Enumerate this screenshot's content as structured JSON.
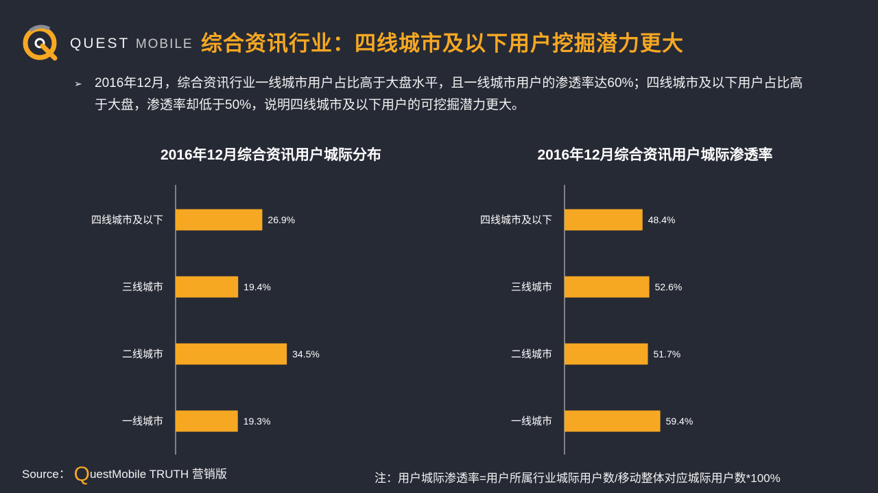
{
  "header": {
    "logo_brand": "QUEST",
    "logo_sub": "MOBILE",
    "title": "综合资讯行业：四线城市及以下用户挖掘潜力更大"
  },
  "bullet": {
    "marker": "➢",
    "text": "2016年12月，综合资讯行业一线城市用户占比高于大盘水平，且一线城市用户的渗透率达60%；四线城市及以下用户占比高于大盘，渗透率却低于50%，说明四线城市及以下用户的可挖掘潜力更大。"
  },
  "colors": {
    "bar": "#f7a823",
    "background": "#262a35",
    "title": "#f7a823"
  },
  "chart_data": [
    {
      "type": "bar",
      "orientation": "horizontal",
      "title": "2016年12月综合资讯用户城际分布",
      "categories": [
        "四线城市及以下",
        "三线城市",
        "二线城市",
        "一线城市"
      ],
      "values": [
        26.9,
        19.4,
        34.5,
        19.3
      ],
      "value_labels": [
        "26.9%",
        "19.4%",
        "34.5%",
        "19.3%"
      ],
      "xlim": [
        0,
        100
      ],
      "grid": false,
      "legend": "none"
    },
    {
      "type": "bar",
      "orientation": "horizontal",
      "title": "2016年12月综合资讯用户城际渗透率",
      "categories": [
        "四线城市及以下",
        "三线城市",
        "二线城市",
        "一线城市"
      ],
      "values": [
        48.4,
        52.6,
        51.7,
        59.4
      ],
      "value_labels": [
        "48.4%",
        "52.6%",
        "51.7%",
        "59.4%"
      ],
      "xlim": [
        0,
        200
      ],
      "grid": false,
      "legend": "none"
    }
  ],
  "footer": {
    "source_label": "Source：",
    "source_q": "Q",
    "source_rest": "uestMobile TRUTH 营销版",
    "note": "注：用户城际渗透率=用户所属行业城际用户数/移动整体对应城际用户数*100%"
  }
}
